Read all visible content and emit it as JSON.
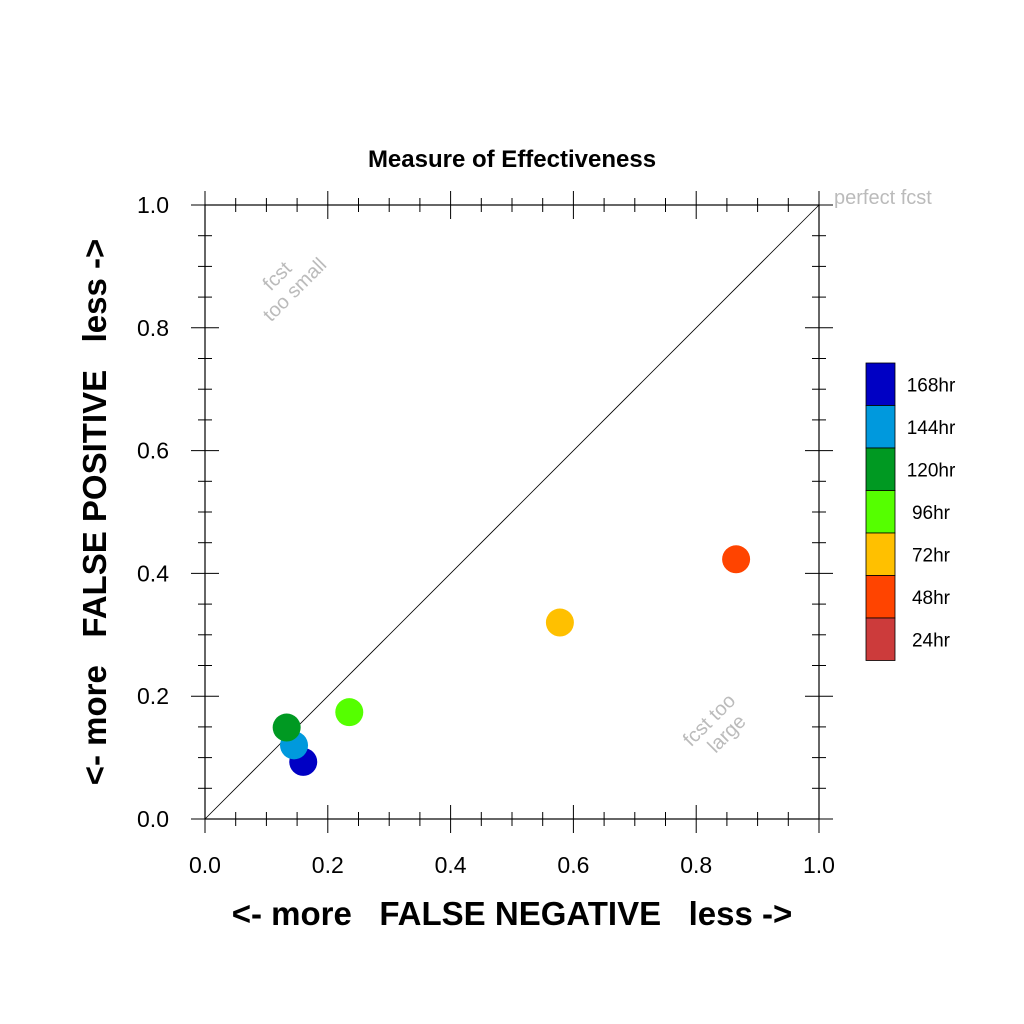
{
  "chart_data": {
    "type": "scatter",
    "title": "Measure of Effectiveness",
    "xlabel": "<- more   FALSE NEGATIVE   less ->",
    "ylabel": "<- more   FALSE POSITIVE   less ->",
    "xlim": [
      0.0,
      1.0
    ],
    "ylim": [
      0.0,
      1.0
    ],
    "x_ticks": [
      "0.0",
      "0.2",
      "0.4",
      "0.6",
      "0.8",
      "1.0"
    ],
    "y_ticks": [
      "0.0",
      "0.2",
      "0.4",
      "0.6",
      "0.8",
      "1.0"
    ],
    "grid": false,
    "legend_position": "right",
    "reference_line": {
      "from": [
        0.0,
        0.0
      ],
      "to": [
        1.0,
        1.0
      ]
    },
    "annotations": {
      "perfect": "perfect fcst",
      "too_small": [
        "fcst",
        "too small"
      ],
      "too_large": [
        "fcst too",
        "large"
      ],
      "color": "#bbbbbb"
    },
    "series": [
      {
        "name": "168hr",
        "color": "#0000c4",
        "x": 0.16,
        "y": 0.093
      },
      {
        "name": "144hr",
        "color": "#0099dd",
        "x": 0.145,
        "y": 0.12
      },
      {
        "name": "120hr",
        "color": "#009922",
        "x": 0.133,
        "y": 0.149
      },
      {
        "name": "96hr",
        "color": "#55ff00",
        "x": 0.235,
        "y": 0.174
      },
      {
        "name": "72hr",
        "color": "#ffc000",
        "x": 0.578,
        "y": 0.32
      },
      {
        "name": "48hr",
        "color": "#ff4400",
        "x": 0.865,
        "y": 0.423
      },
      {
        "name": "24hr",
        "color": "#cc3b3b",
        "x": null,
        "y": null
      }
    ]
  }
}
